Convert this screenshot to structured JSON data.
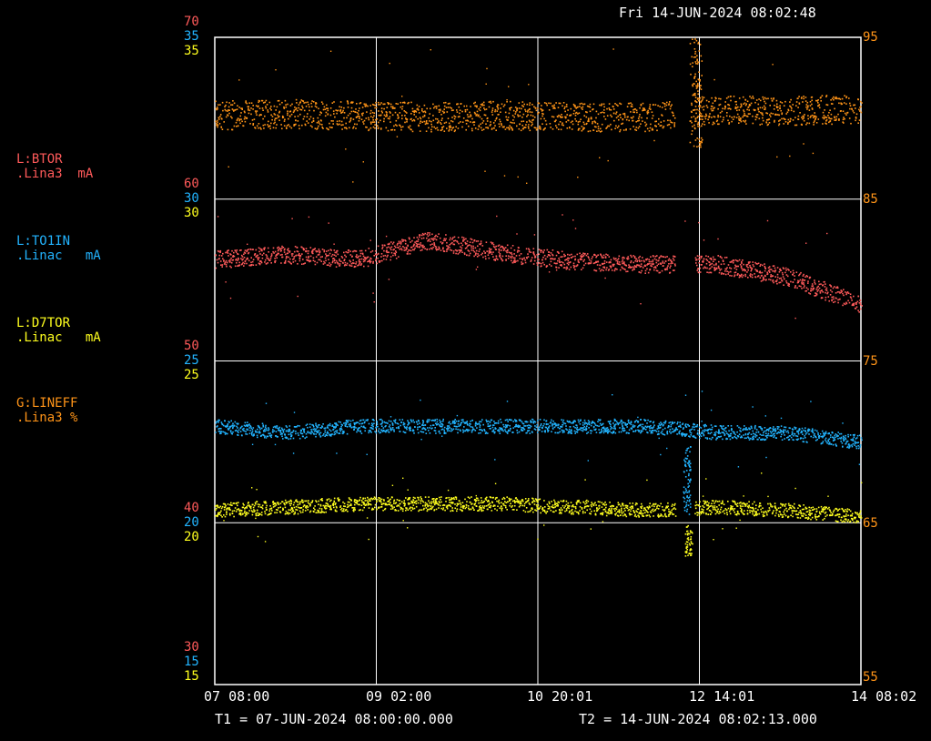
{
  "header": {
    "datetime": "Fri 14-JUN-2024 08:02:48"
  },
  "colors": {
    "btor": "#ff5a5a",
    "to1in": "#22b4ff",
    "d7tor": "#ffff1e",
    "lineff": "#ff9418",
    "grid": "#ffffff",
    "background": "#000000"
  },
  "legend": [
    {
      "device": "L:BTOR",
      "unit_line": ".Lina3  mA",
      "color": "#ff5a5a"
    },
    {
      "device": "L:TO1IN",
      "unit_line": ".Linac   mA",
      "color": "#22b4ff"
    },
    {
      "device": "L:D7TOR",
      "unit_line": ".Linac   mA",
      "color": "#ffff1e"
    },
    {
      "device": "G:LINEFF",
      "unit_line": ".Lina3 %",
      "color": "#ff9418"
    }
  ],
  "left_ticks": {
    "red": [
      "70",
      "60",
      "50",
      "40",
      "30"
    ],
    "blue": [
      "35",
      "30",
      "25",
      "20",
      "15"
    ],
    "yellow": [
      "35",
      "30",
      "25",
      "20",
      "15"
    ]
  },
  "right_ticks": [
    "95",
    "85",
    "75",
    "65",
    "55"
  ],
  "x_ticks": [
    "07 08:00",
    "09 02:00",
    "10 20:01",
    "12 14:01",
    "14 08:02"
  ],
  "footer": {
    "t1": "T1 = 07-JUN-2024 08:00:00.000",
    "t2": "T2 = 14-JUN-2024 08:02:13.000"
  },
  "chart_data": {
    "type": "scatter",
    "x": [
      "07 08:00",
      "08 02:00",
      "09 02:00",
      "09 20:00",
      "10 20:01",
      "11 14:00",
      "12 08:00",
      "12 14:01",
      "13 08:00",
      "14 08:02"
    ],
    "xlim": [
      "07-JUN-2024 08:00:00.000",
      "14-JUN-2024 08:02:13.000"
    ],
    "series": [
      {
        "name": "L:BTOR",
        "axis": "left-red",
        "unit": "mA",
        "ylim": [
          30,
          70
        ],
        "values": [
          56.3,
          56.6,
          56.3,
          57.5,
          56.7,
          56.2,
          56.0,
          56.0,
          55.2,
          53.5
        ]
      },
      {
        "name": "L:TO1IN",
        "axis": "left-blue",
        "unit": "mA",
        "ylim": [
          15,
          35
        ],
        "values": [
          23.0,
          22.8,
          23.0,
          23.0,
          23.0,
          23.0,
          23.0,
          22.8,
          22.8,
          22.5
        ]
      },
      {
        "name": "L:D7TOR",
        "axis": "left-yellow",
        "unit": "mA",
        "ylim": [
          15,
          35
        ],
        "values": [
          20.4,
          20.5,
          20.6,
          20.6,
          20.6,
          20.5,
          20.4,
          20.5,
          20.4,
          20.2
        ]
      },
      {
        "name": "G:LINEFF",
        "axis": "right-orange",
        "unit": "%",
        "ylim": [
          55,
          95
        ],
        "values": [
          90.2,
          90.3,
          90.2,
          90.1,
          90.2,
          90.1,
          90.1,
          90.5,
          90.5,
          90.6
        ]
      }
    ],
    "grid": true
  }
}
